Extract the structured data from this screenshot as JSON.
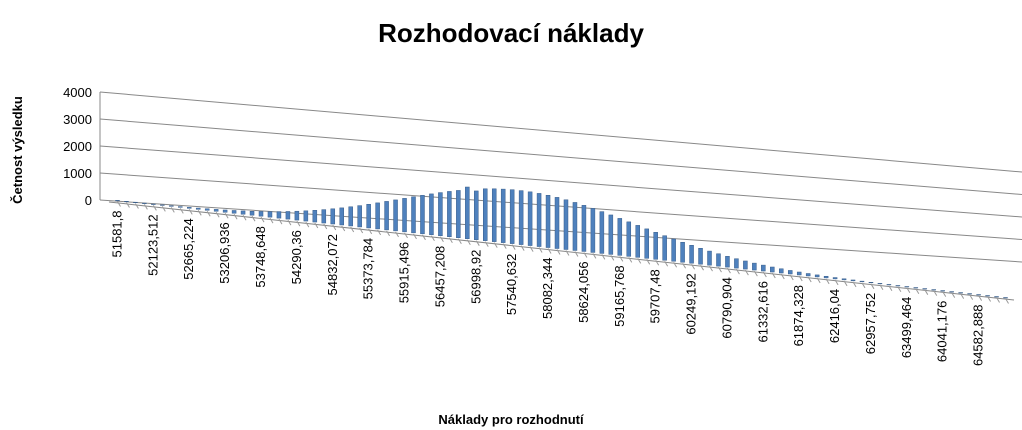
{
  "chart_data": {
    "type": "bar3d",
    "title": "Rozhodovací náklady",
    "x_label": "Náklady pro rozhodnutí",
    "y_label": "Četnost výsledku",
    "categories": [
      "51581,8",
      null,
      null,
      null,
      "52123,512",
      null,
      null,
      null,
      "52665,224",
      null,
      null,
      null,
      "53206,936",
      null,
      null,
      null,
      "53748,648",
      null,
      null,
      null,
      "54290,36",
      null,
      null,
      null,
      "54832,072",
      null,
      null,
      null,
      "55373,784",
      null,
      null,
      null,
      "55915,496",
      null,
      null,
      null,
      "56457,208",
      null,
      null,
      null,
      "56998,92",
      null,
      null,
      null,
      "57540,632",
      null,
      null,
      null,
      "58082,344",
      null,
      null,
      null,
      "58624,056",
      null,
      null,
      null,
      "59165,768",
      null,
      null,
      null,
      "59707,48",
      null,
      null,
      null,
      "60249,192",
      null,
      null,
      null,
      "60790,904",
      null,
      null,
      null,
      "61332,616",
      null,
      null,
      null,
      "61874,328",
      null,
      null,
      null,
      "62416,04",
      null,
      null,
      null,
      "62957,752",
      null,
      null,
      null,
      "63499,464",
      null,
      null,
      null,
      "64041,176",
      null,
      null,
      null,
      "64582,888",
      null,
      null,
      null
    ],
    "values": [
      5,
      7,
      9,
      11,
      14,
      18,
      23,
      29,
      37,
      45,
      56,
      69,
      84,
      101,
      122,
      146,
      174,
      206,
      243,
      284,
      331,
      382,
      439,
      502,
      570,
      643,
      722,
      804,
      893,
      984,
      1079,
      1175,
      1273,
      1372,
      1468,
      1563,
      1653,
      1738,
      1817,
      1990,
      1880,
      2004,
      2045,
      2075,
      2094,
      2100,
      2094,
      2075,
      2045,
      2004,
      1951,
      1889,
      1817,
      1738,
      1653,
      1563,
      1468,
      1372,
      1273,
      1175,
      1079,
      984,
      893,
      804,
      722,
      643,
      570,
      502,
      439,
      382,
      331,
      284,
      243,
      206,
      174,
      146,
      122,
      101,
      84,
      69,
      56,
      45,
      37,
      29,
      23,
      18,
      14,
      11,
      9,
      7,
      5,
      4,
      3,
      2,
      2,
      1,
      1,
      1,
      0,
      0
    ],
    "color": "#4f81bd",
    "ylim": [
      0,
      4000
    ],
    "yticks": [
      0,
      1000,
      2000,
      3000,
      4000
    ],
    "grid": true
  }
}
